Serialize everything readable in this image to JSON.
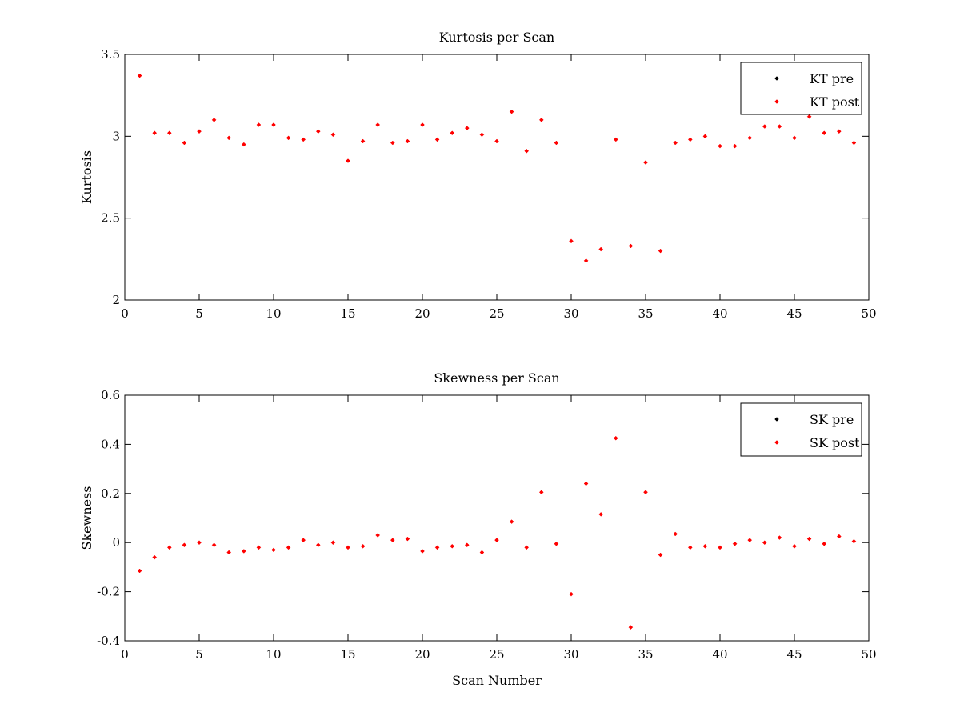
{
  "chart_data": [
    {
      "type": "scatter",
      "title": "Kurtosis per Scan",
      "xlabel": "",
      "ylabel": "Kurtosis",
      "xlim": [
        0,
        50
      ],
      "ylim": [
        2,
        3.5
      ],
      "xticks": [
        0,
        5,
        10,
        15,
        20,
        25,
        30,
        35,
        40,
        45,
        50
      ],
      "yticks": [
        2,
        2.5,
        3,
        3.5
      ],
      "xtick_labels": [
        "0",
        "5",
        "10",
        "15",
        "20",
        "25",
        "30",
        "35",
        "40",
        "45",
        "50"
      ],
      "ytick_labels": [
        "2",
        "2.5",
        "3",
        "3.5"
      ],
      "grid": false,
      "legend_position": "top-right",
      "series": [
        {
          "name": "KT pre",
          "color": "#000000",
          "x": [],
          "y": []
        },
        {
          "name": "KT post",
          "color": "#ff0000",
          "x": [
            1,
            2,
            3,
            4,
            5,
            6,
            7,
            8,
            9,
            10,
            11,
            12,
            13,
            14,
            15,
            16,
            17,
            18,
            19,
            20,
            21,
            22,
            23,
            24,
            25,
            26,
            27,
            28,
            29,
            30,
            31,
            32,
            33,
            34,
            35,
            36,
            37,
            38,
            39,
            40,
            41,
            42,
            43,
            44,
            45,
            46,
            47,
            48,
            49
          ],
          "y": [
            3.37,
            3.02,
            3.02,
            2.96,
            3.03,
            3.1,
            2.99,
            2.95,
            3.07,
            3.07,
            2.99,
            2.98,
            3.03,
            3.01,
            2.85,
            2.97,
            3.07,
            2.96,
            2.97,
            3.07,
            2.98,
            3.02,
            3.05,
            3.01,
            2.97,
            3.15,
            2.91,
            3.1,
            2.96,
            2.36,
            2.24,
            2.31,
            2.98,
            2.33,
            2.84,
            2.3,
            2.96,
            2.98,
            3.0,
            2.94,
            2.94,
            2.99,
            3.06,
            3.06,
            2.99,
            3.12,
            3.02,
            3.03,
            2.96
          ]
        }
      ]
    },
    {
      "type": "scatter",
      "title": "Skewness per Scan",
      "xlabel": "Scan Number",
      "ylabel": "Skewness",
      "xlim": [
        0,
        50
      ],
      "ylim": [
        -0.4,
        0.6
      ],
      "xticks": [
        0,
        5,
        10,
        15,
        20,
        25,
        30,
        35,
        40,
        45,
        50
      ],
      "yticks": [
        -0.4,
        -0.2,
        0,
        0.2,
        0.4,
        0.6
      ],
      "xtick_labels": [
        "0",
        "5",
        "10",
        "15",
        "20",
        "25",
        "30",
        "35",
        "40",
        "45",
        "50"
      ],
      "ytick_labels": [
        "-0.4",
        "-0.2",
        "0",
        "0.2",
        "0.4",
        "0.6"
      ],
      "grid": false,
      "legend_position": "top-right",
      "series": [
        {
          "name": "SK pre",
          "color": "#000000",
          "x": [],
          "y": []
        },
        {
          "name": "SK post",
          "color": "#ff0000",
          "x": [
            1,
            2,
            3,
            4,
            5,
            6,
            7,
            8,
            9,
            10,
            11,
            12,
            13,
            14,
            15,
            16,
            17,
            18,
            19,
            20,
            21,
            22,
            23,
            24,
            25,
            26,
            27,
            28,
            29,
            30,
            31,
            32,
            33,
            34,
            35,
            36,
            37,
            38,
            39,
            40,
            41,
            42,
            43,
            44,
            45,
            46,
            47,
            48,
            49
          ],
          "y": [
            -0.115,
            -0.06,
            -0.02,
            -0.01,
            0.0,
            -0.01,
            -0.04,
            -0.035,
            -0.02,
            -0.03,
            -0.02,
            0.01,
            -0.01,
            0.0,
            -0.02,
            -0.015,
            0.03,
            0.01,
            0.015,
            -0.035,
            -0.02,
            -0.015,
            -0.01,
            -0.04,
            0.01,
            0.085,
            -0.02,
            0.205,
            -0.005,
            -0.21,
            0.24,
            0.115,
            0.425,
            -0.345,
            0.205,
            -0.05,
            0.035,
            -0.02,
            -0.015,
            -0.02,
            -0.005,
            0.01,
            0.0,
            0.02,
            -0.015,
            0.015,
            -0.005,
            0.025,
            0.005
          ]
        }
      ]
    }
  ]
}
